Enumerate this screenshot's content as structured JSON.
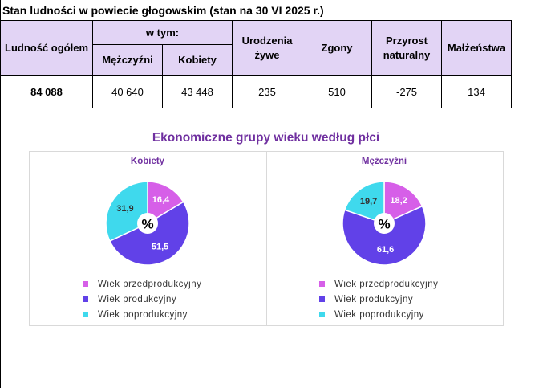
{
  "title": "Stan ludności w powiecie głogowskim (stan na 30 VI 2025 r.)",
  "table": {
    "headers": {
      "population_total": "Ludność ogółem",
      "in_that": "w tym:",
      "men": "Mężczyźni",
      "women": "Kobiety",
      "births": "Urodzenia żywe",
      "deaths": "Zgony",
      "natural_increase": "Przyrost naturalny",
      "marriages": "Małżeństwa"
    },
    "values": {
      "population_total": "84 088",
      "men": "40 640",
      "women": "43 448",
      "births": "235",
      "deaths": "510",
      "natural_increase": "-275",
      "marriages": "134"
    }
  },
  "chart_section": {
    "title": "Ekonomiczne grupy wieku według płci",
    "center_symbol": "%"
  },
  "colors": {
    "pre_working": "#d65fe8",
    "working": "#6141e8",
    "post_working": "#3fd9ed",
    "title_purple": "#7030a0",
    "header_bg": "#e2d4f5"
  },
  "chart_data": [
    {
      "type": "pie",
      "title": "Kobiety",
      "labels": [
        "Wiek przedprodukcyjny",
        "Wiek produkcyjny",
        "Wiek poprodukcyjny"
      ],
      "values": [
        16.4,
        51.5,
        31.9
      ],
      "value_labels": [
        "16,4",
        "51,5",
        "31,9"
      ],
      "legend_position": "bottom"
    },
    {
      "type": "pie",
      "title": "Mężczyźni",
      "labels": [
        "Wiek przedprodukcyjny",
        "Wiek produkcyjny",
        "Wiek poprodukcyjny"
      ],
      "values": [
        18.2,
        61.6,
        19.7
      ],
      "value_labels": [
        "18,2",
        "61,6",
        "19,7"
      ],
      "legend_position": "bottom"
    }
  ]
}
